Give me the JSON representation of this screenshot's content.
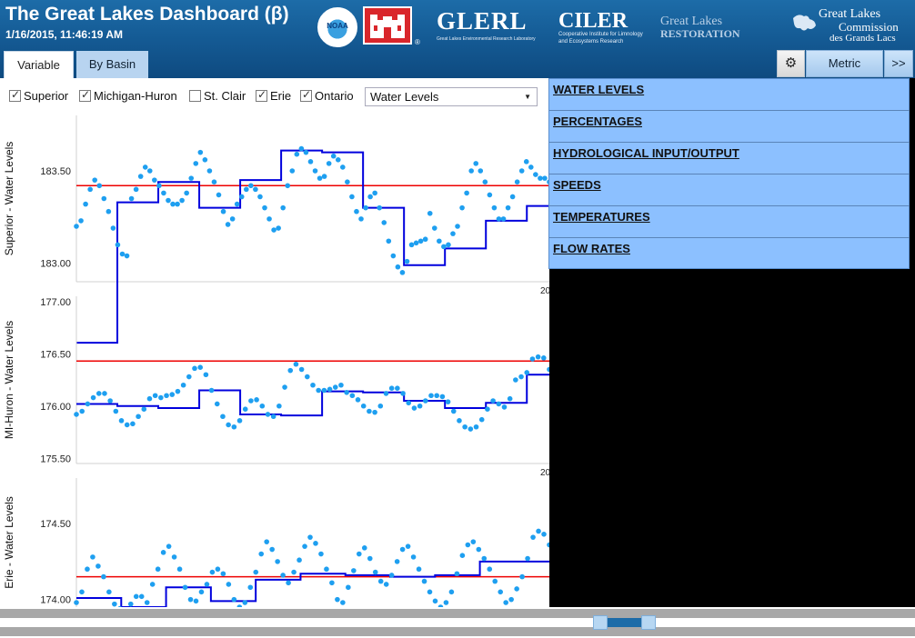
{
  "header": {
    "title": "The Great Lakes Dashboard (β)",
    "timestamp": "1/16/2015, 11:46:19 AM"
  },
  "logos": {
    "noaa": "NOAA",
    "glerl": "GLERL",
    "glerl_sub": "Great Lakes Environmental Research Laboratory",
    "ciler": "CILER",
    "ciler_sub1": "Cooperative Institute for Limnology",
    "ciler_sub2": "and Ecosystems Research",
    "glr_line1": "Great Lakes",
    "glr_line2": "RESTORATION",
    "glc_line1": "Great Lakes",
    "glc_line2": "Commission",
    "glc_line3": "des Grands Lacs",
    "registered": "®"
  },
  "tabs": {
    "variable": "Variable",
    "by_basin": "By Basin"
  },
  "buttons": {
    "metric": "Metric",
    "more": ">>"
  },
  "checkboxes": [
    {
      "label": "Superior",
      "checked": true
    },
    {
      "label": "Michigan-Huron",
      "checked": true
    },
    {
      "label": "St. Clair",
      "checked": false
    },
    {
      "label": "Erie",
      "checked": true
    },
    {
      "label": "Ontario",
      "checked": true
    }
  ],
  "select": {
    "value": "Water Levels"
  },
  "menu": {
    "items": [
      "WATER LEVELS",
      "PERCENTAGES",
      "HYDROLOGICAL INPUT/OUTPUT",
      "SPEEDS",
      "TEMPERATURES",
      "FLOW RATES"
    ]
  },
  "colors": {
    "dots": "#1e9ff0",
    "annual": "#0000dd",
    "average": "#ee0000",
    "header_blue": "#155c96",
    "menu_blue": "#8cc0ff"
  },
  "chart_data": [
    {
      "type": "scatter",
      "ylabel": "Superior - Water Levels",
      "ticks": [
        "183.50",
        "183.00"
      ],
      "tick_values": [
        183.5,
        183.0
      ],
      "ylim": [
        182.9,
        183.8
      ],
      "x_edge_label": "20",
      "average": 183.42,
      "annual_steps": [
        182.57,
        183.33,
        183.44,
        183.3,
        183.45,
        183.61,
        183.6,
        183.3,
        182.99,
        183.08,
        183.23,
        183.31
      ],
      "monthly": [
        183.2,
        183.23,
        183.32,
        183.4,
        183.45,
        183.42,
        183.35,
        183.28,
        183.19,
        183.1,
        183.05,
        183.04,
        183.35,
        183.4,
        183.47,
        183.52,
        183.5,
        183.45,
        183.42,
        183.38,
        183.34,
        183.32,
        183.32,
        183.34,
        183.38,
        183.46,
        183.54,
        183.6,
        183.56,
        183.5,
        183.44,
        183.37,
        183.28,
        183.21,
        183.24,
        183.32,
        183.36,
        183.4,
        183.42,
        183.4,
        183.36,
        183.3,
        183.24,
        183.18,
        183.19,
        183.3,
        183.42,
        183.5,
        183.59,
        183.62,
        183.6,
        183.55,
        183.5,
        183.46,
        183.47,
        183.54,
        183.58,
        183.56,
        183.52,
        183.44,
        183.36,
        183.28,
        183.24,
        183.3,
        183.36,
        183.38,
        183.3,
        183.22,
        183.12,
        183.04,
        182.98,
        182.95,
        183.01,
        183.1,
        183.11,
        183.12,
        183.13,
        183.27,
        183.19,
        183.12,
        183.09,
        183.1,
        183.16,
        183.2,
        183.3,
        183.38,
        183.5,
        183.54,
        183.5,
        183.44,
        183.37,
        183.3,
        183.24,
        183.24,
        183.3,
        183.36,
        183.44,
        183.5,
        183.55,
        183.52,
        183.48,
        183.46,
        183.46,
        183.44
      ]
    },
    {
      "type": "scatter",
      "ylabel": "MI-Huron - Water Levels",
      "ticks": [
        "177.00",
        "176.50",
        "176.00",
        "175.50"
      ],
      "tick_values": [
        177.0,
        176.5,
        176.0,
        175.5
      ],
      "ylim": [
        175.45,
        177.05
      ],
      "x_edge_label": "20",
      "average": 176.43,
      "annual_steps": [
        176.02,
        176.0,
        175.98,
        176.15,
        175.92,
        175.91,
        176.14,
        176.13,
        176.05,
        175.98,
        176.03,
        176.3
      ],
      "monthly": [
        175.92,
        175.95,
        176.02,
        176.08,
        176.12,
        176.12,
        176.05,
        175.95,
        175.86,
        175.82,
        175.83,
        175.9,
        175.97,
        176.07,
        176.1,
        176.08,
        176.1,
        176.11,
        176.14,
        176.2,
        176.28,
        176.36,
        176.37,
        176.3,
        176.15,
        176.02,
        175.9,
        175.82,
        175.8,
        175.86,
        175.97,
        176.05,
        176.06,
        176.0,
        175.92,
        175.9,
        176.0,
        176.18,
        176.34,
        176.4,
        176.35,
        176.28,
        176.2,
        176.15,
        176.15,
        176.16,
        176.18,
        176.2,
        176.13,
        176.1,
        176.06,
        176.0,
        175.95,
        175.94,
        176.0,
        176.12,
        176.17,
        176.17,
        176.12,
        176.03,
        175.98,
        176.0,
        176.05,
        176.1,
        176.1,
        176.09,
        176.04,
        175.95,
        175.86,
        175.8,
        175.78,
        175.8,
        175.87,
        175.97,
        176.05,
        176.02,
        175.99,
        176.07,
        176.25,
        176.28,
        176.32,
        176.45,
        176.47,
        176.46,
        176.35
      ]
    },
    {
      "type": "scatter",
      "ylabel": "Erie - Water Levels",
      "ticks": [
        "174.50",
        "174.00"
      ],
      "tick_values": [
        174.5,
        174.0
      ],
      "ylim": [
        173.95,
        174.8
      ],
      "x_edge_label": "",
      "average": 174.15,
      "annual_steps": [
        174.01,
        173.95,
        174.08,
        173.99,
        174.13,
        174.17,
        174.16,
        174.15,
        174.16,
        174.25,
        174.25
      ],
      "monthly": [
        173.98,
        174.05,
        174.2,
        174.28,
        174.22,
        174.15,
        174.05,
        173.97,
        173.94,
        173.93,
        173.97,
        174.02,
        174.02,
        173.98,
        174.1,
        174.2,
        174.31,
        174.35,
        174.28,
        174.2,
        174.08,
        174.0,
        173.99,
        174.05,
        174.1,
        174.18,
        174.2,
        174.17,
        174.1,
        174.0,
        173.95,
        173.98,
        174.08,
        174.18,
        174.3,
        174.38,
        174.33,
        174.25,
        174.16,
        174.11,
        174.18,
        174.26,
        174.35,
        174.41,
        174.37,
        174.3,
        174.2,
        174.11,
        174.0,
        173.98,
        174.08,
        174.19,
        174.3,
        174.34,
        174.27,
        174.18,
        174.12,
        174.1,
        174.16,
        174.25,
        174.33,
        174.35,
        174.28,
        174.2,
        174.12,
        174.05,
        173.99,
        173.95,
        173.98,
        174.05,
        174.17,
        174.29,
        174.36,
        174.38,
        174.33,
        174.27,
        174.2,
        174.12,
        174.05,
        173.98,
        174.0,
        174.07,
        174.15,
        174.27,
        174.41,
        174.45,
        174.43,
        174.36
      ]
    }
  ]
}
